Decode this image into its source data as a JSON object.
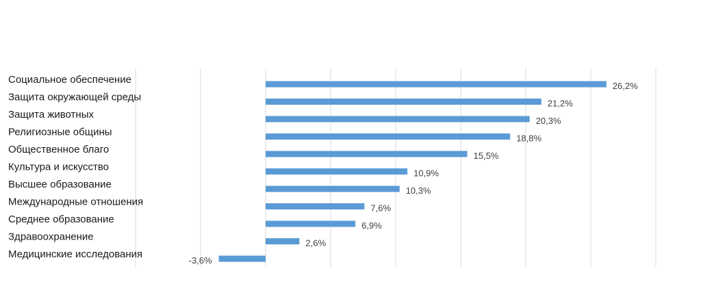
{
  "chart_data": {
    "type": "bar",
    "orientation": "horizontal",
    "title": "",
    "xlabel": "",
    "ylabel": "",
    "categories": [
      "Социальное обеспечение",
      "Защита окружающей среды",
      "Защита животных",
      "Религиозные общины",
      "Общественное благо",
      "Культура и искусство",
      "Высшее образование",
      "Международные отношения",
      "Среднее образование",
      "Здравоохранение",
      "Медицинские исследования"
    ],
    "values": [
      26.2,
      21.2,
      20.3,
      18.8,
      15.5,
      10.9,
      10.3,
      7.6,
      6.9,
      2.6,
      -3.6
    ],
    "data_labels": [
      "26,2%",
      "21,2%",
      "20,3%",
      "18,8%",
      "15,5%",
      "10,9%",
      "10,3%",
      "7,6%",
      "6,9%",
      "2,6%",
      "-3,6%"
    ],
    "xlim": [
      -10,
      30
    ],
    "grid": true,
    "legend": "none",
    "bar_color": "#5b9bd5"
  }
}
